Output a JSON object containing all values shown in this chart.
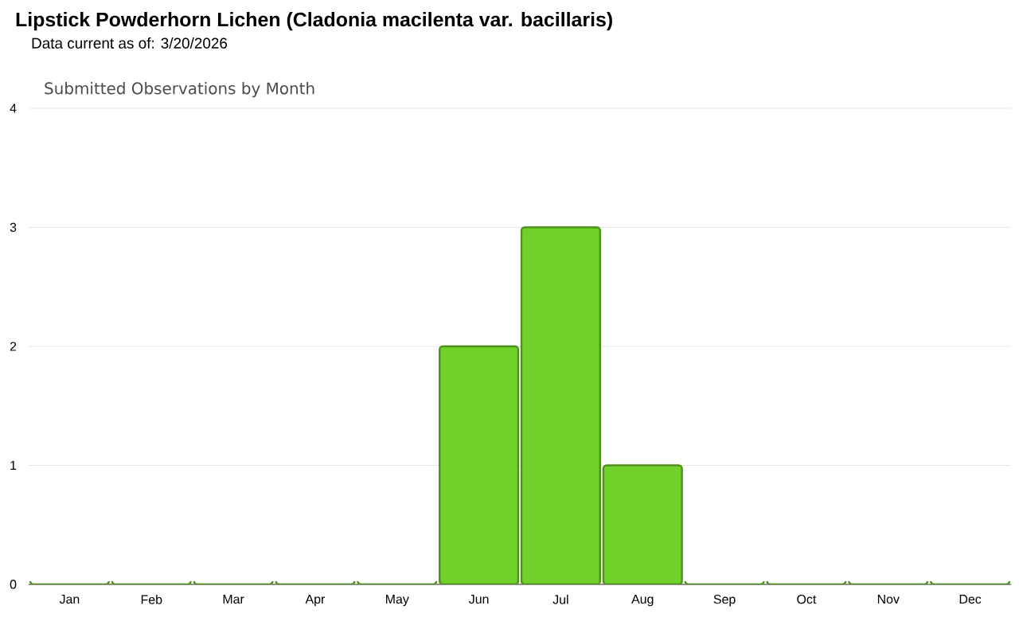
{
  "chart_data": {
    "type": "bar",
    "title": "Lipstick Powderhorn Lichen   (Cladonia macilenta var. bacillaris)",
    "subtitle": "Data current as of: 3/20/2026",
    "annotations": [
      "Submitted Observations by Month"
    ],
    "categories": [
      "Jan",
      "Feb",
      "Mar",
      "Apr",
      "May",
      "Jun",
      "Jul",
      "Aug",
      "Sep",
      "Oct",
      "Nov",
      "Dec"
    ],
    "values": [
      0,
      0,
      0,
      0,
      0,
      2,
      3,
      1,
      0,
      0,
      0,
      0
    ],
    "color": "#6fd12a",
    "ylim": [
      0,
      4
    ],
    "yticks": [
      0,
      1,
      2,
      3,
      4
    ],
    "grid": "y"
  }
}
